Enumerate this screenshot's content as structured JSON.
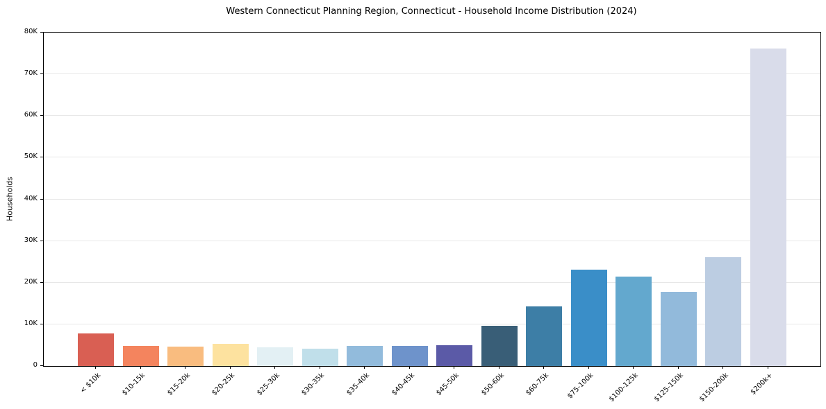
{
  "chart_data": {
    "type": "bar",
    "title": "Western Connecticut Planning Region, Connecticut - Household Income Distribution (2024)",
    "xlabel": "",
    "ylabel": "Households",
    "categories": [
      "< $10k",
      "$10-15k",
      "$15-20k",
      "$20-25k",
      "$25-30k",
      "$30-35k",
      "$35-40k",
      "$40-45k",
      "$45-50k",
      "$50-60k",
      "$60-75k",
      "$75-100k",
      "$100-125k",
      "$125-150k",
      "$150-200k",
      "$200k+"
    ],
    "values": [
      7800,
      4800,
      4600,
      5300,
      4500,
      4100,
      4800,
      4800,
      5000,
      9600,
      14300,
      23100,
      21400,
      17800,
      26100,
      76200
    ],
    "bar_colors": [
      "#d95f53",
      "#f4845e",
      "#f9bc7f",
      "#fde29f",
      "#e3f0f4",
      "#c0dfea",
      "#92bbdc",
      "#6e93cb",
      "#5b5aa7",
      "#395e77",
      "#3d7ea6",
      "#3a8ec8",
      "#63a8ce",
      "#92badb",
      "#bccde2",
      "#d9dcea"
    ],
    "ylim": [
      0,
      80000
    ],
    "ytick_values": [
      0,
      10000,
      20000,
      30000,
      40000,
      50000,
      60000,
      70000,
      80000
    ],
    "ytick_labels": [
      "0",
      "10K",
      "20K",
      "30K",
      "40K",
      "50K",
      "60K",
      "70K",
      "80K"
    ],
    "grid": "horizontal",
    "grid_color": "#e7e7e7",
    "axis_color": "#000000",
    "background": "#ffffff",
    "legend": "none"
  }
}
